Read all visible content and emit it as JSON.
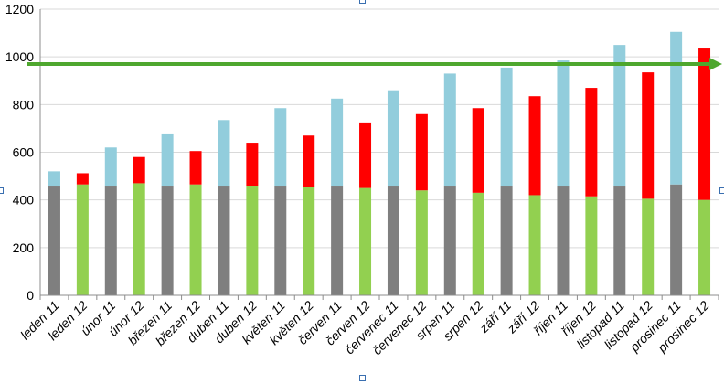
{
  "chart_data": {
    "type": "bar",
    "stacked": true,
    "title": "",
    "xlabel": "",
    "ylabel": "",
    "ylim": [
      0,
      1200
    ],
    "yticks": [
      0,
      200,
      400,
      600,
      800,
      1000,
      1200
    ],
    "grid": true,
    "legend": "none",
    "categories": [
      "leden 11",
      "leden 12",
      "únor 11",
      "únor 12",
      "březen 11",
      "březen 12",
      "duben 11",
      "duben 12",
      "květen 11",
      "květen 12",
      "červen 11",
      "červen 12",
      "červenec 11",
      "červenec 12",
      "srpen 11",
      "srpen 12",
      "září 11",
      "září 12",
      "říjen 11",
      "říjen 12",
      "listopad 11",
      "listopad 12",
      "prosinec 11",
      "prosinec 12"
    ],
    "series": [
      {
        "color": "#7f7f7f",
        "values": [
          460,
          0,
          460,
          0,
          460,
          0,
          460,
          0,
          460,
          0,
          460,
          0,
          460,
          0,
          460,
          0,
          460,
          0,
          460,
          0,
          460,
          0,
          465,
          0
        ]
      },
      {
        "color": "#92d050",
        "values": [
          0,
          465,
          0,
          470,
          0,
          465,
          0,
          460,
          0,
          455,
          0,
          450,
          0,
          440,
          0,
          430,
          0,
          420,
          0,
          415,
          0,
          405,
          0,
          400
        ]
      },
      {
        "color": "#92cddc",
        "values": [
          60,
          0,
          160,
          0,
          215,
          0,
          275,
          0,
          325,
          0,
          365,
          0,
          400,
          0,
          470,
          0,
          495,
          0,
          525,
          0,
          590,
          0,
          640,
          0
        ]
      },
      {
        "color": "#ff0000",
        "values": [
          0,
          47,
          0,
          110,
          0,
          140,
          0,
          180,
          0,
          215,
          0,
          275,
          0,
          320,
          0,
          355,
          0,
          415,
          0,
          455,
          0,
          530,
          0,
          635
        ]
      }
    ],
    "reference_line": {
      "value": 970,
      "color": "#4ea72e"
    }
  }
}
